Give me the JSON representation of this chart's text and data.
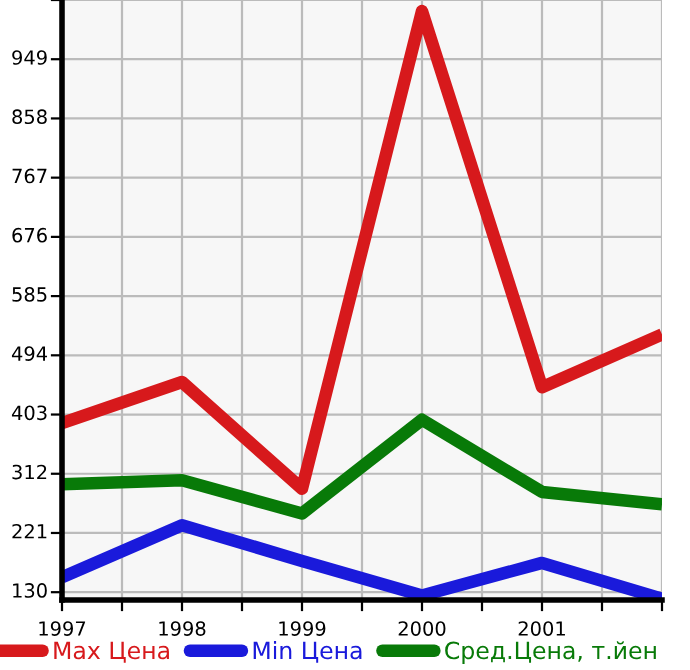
{
  "chart_data": {
    "type": "line",
    "x": [
      1997,
      1998,
      1999,
      2000,
      2001,
      2002
    ],
    "series": [
      {
        "name": "Max Цена",
        "color": "#d7191c",
        "values": [
          390,
          453,
          289,
          1023,
          445,
          526
        ]
      },
      {
        "name": "Min Цена",
        "color": "#1a1adb",
        "values": [
          153,
          233,
          178,
          125,
          175,
          120
        ]
      },
      {
        "name": "Сред.Цена, т.йен",
        "color": "#087a08",
        "values": [
          296,
          302,
          251,
          395,
          284,
          265
        ]
      }
    ],
    "xlim": [
      1997,
      2002
    ],
    "xticks": [
      1997,
      {
        "value": 1997.5,
        "label": null
      },
      1998,
      {
        "value": 1998.5,
        "label": null
      },
      1999,
      {
        "value": 1999.5,
        "label": null
      },
      2000,
      {
        "value": 2000.5,
        "label": null
      },
      2001,
      {
        "value": 2001.5,
        "label": null
      },
      {
        "value": 2002,
        "label": null
      }
    ],
    "ylim": [
      118,
      1040
    ],
    "yticks": [
      130,
      221,
      312,
      403,
      494,
      585,
      676,
      767,
      858,
      949,
      {
        "value": 1040,
        "label": null
      }
    ],
    "grid": true,
    "legend": "bottom",
    "marker": "none",
    "line_style": "solid"
  }
}
